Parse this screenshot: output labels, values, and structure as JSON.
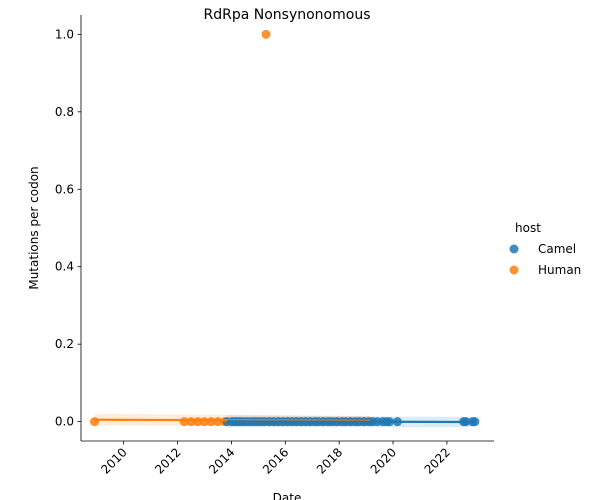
{
  "chart_data": {
    "type": "scatter",
    "title": "RdRpa Nonsynonomous",
    "xlabel": "Date",
    "ylabel": "Mutations per codon",
    "xlim": [
      "2008-06-01",
      "2023-10-01"
    ],
    "ylim": [
      -0.05,
      1.05
    ],
    "x_ticks": [
      "2010",
      "2012",
      "2014",
      "2016",
      "2018",
      "2020",
      "2022"
    ],
    "y_ticks": [
      "0.0",
      "0.2",
      "0.4",
      "0.6",
      "0.8",
      "1.0"
    ],
    "legend": {
      "title": "host",
      "placement": "right",
      "entries": [
        "Camel",
        "Human"
      ]
    },
    "colors": {
      "Camel": "#1f77b4",
      "Human": "#ff7f0e"
    },
    "series": [
      {
        "name": "Camel",
        "points": [
          [
            "2013-11-01",
            0
          ],
          [
            "2014-01-15",
            0
          ],
          [
            "2014-03-01",
            0
          ],
          [
            "2014-04-15",
            0
          ],
          [
            "2014-06-01",
            0
          ],
          [
            "2014-08-01",
            0
          ],
          [
            "2014-10-01",
            0
          ],
          [
            "2014-12-01",
            0
          ],
          [
            "2015-02-01",
            0
          ],
          [
            "2015-04-01",
            0
          ],
          [
            "2015-06-01",
            0
          ],
          [
            "2015-08-01",
            0
          ],
          [
            "2015-10-01",
            0
          ],
          [
            "2015-12-01",
            0
          ],
          [
            "2016-02-01",
            0
          ],
          [
            "2016-04-01",
            0
          ],
          [
            "2016-06-01",
            0
          ],
          [
            "2016-08-01",
            0
          ],
          [
            "2016-10-01",
            0
          ],
          [
            "2016-12-01",
            0
          ],
          [
            "2017-02-01",
            0
          ],
          [
            "2017-04-01",
            0
          ],
          [
            "2017-06-01",
            0
          ],
          [
            "2017-08-01",
            0
          ],
          [
            "2017-10-01",
            0
          ],
          [
            "2017-12-01",
            0
          ],
          [
            "2018-02-01",
            0
          ],
          [
            "2018-04-01",
            0
          ],
          [
            "2018-06-01",
            0
          ],
          [
            "2018-08-01",
            0
          ],
          [
            "2018-10-01",
            0
          ],
          [
            "2018-12-01",
            0
          ],
          [
            "2019-02-01",
            0
          ],
          [
            "2019-04-01",
            0
          ],
          [
            "2019-06-01",
            0
          ],
          [
            "2019-08-15",
            0
          ],
          [
            "2019-10-01",
            0
          ],
          [
            "2019-11-15",
            0
          ],
          [
            "2020-03-01",
            0
          ],
          [
            "2022-08-15",
            0
          ],
          [
            "2022-09-15",
            0
          ],
          [
            "2022-12-15",
            0
          ],
          [
            "2023-01-15",
            0
          ]
        ],
        "trend": [
          [
            "2013-11-01",
            0.001
          ],
          [
            "2023-01-15",
            -0.001
          ]
        ]
      },
      {
        "name": "Human",
        "points": [
          [
            "2008-12-01",
            0
          ],
          [
            "2012-04-01",
            0
          ],
          [
            "2012-07-01",
            0
          ],
          [
            "2012-10-01",
            0
          ],
          [
            "2013-01-01",
            0
          ],
          [
            "2013-04-01",
            0
          ],
          [
            "2013-07-01",
            0
          ],
          [
            "2013-10-01",
            0
          ],
          [
            "2014-01-01",
            0
          ],
          [
            "2014-03-01",
            0
          ],
          [
            "2014-05-01",
            0
          ],
          [
            "2014-07-01",
            0
          ],
          [
            "2014-09-01",
            0
          ],
          [
            "2014-11-01",
            0
          ],
          [
            "2015-01-01",
            0
          ],
          [
            "2015-03-01",
            0
          ],
          [
            "2015-04-15",
            1.0
          ],
          [
            "2015-06-01",
            0
          ],
          [
            "2015-08-01",
            0
          ],
          [
            "2015-10-01",
            0
          ],
          [
            "2015-12-01",
            0
          ],
          [
            "2016-02-01",
            0
          ],
          [
            "2016-04-01",
            0
          ],
          [
            "2016-06-01",
            0
          ],
          [
            "2016-08-01",
            0
          ],
          [
            "2016-10-01",
            0
          ],
          [
            "2016-12-01",
            0
          ],
          [
            "2017-03-01",
            0
          ],
          [
            "2017-06-01",
            0
          ],
          [
            "2017-09-01",
            0
          ],
          [
            "2017-12-01",
            0
          ],
          [
            "2018-03-01",
            0
          ],
          [
            "2018-06-01",
            0
          ],
          [
            "2018-09-01",
            0
          ],
          [
            "2018-12-01",
            0
          ],
          [
            "2019-03-01",
            0
          ]
        ],
        "trend": [
          [
            "2008-12-01",
            0.005
          ],
          [
            "2019-03-01",
            0.002
          ]
        ]
      }
    ]
  }
}
